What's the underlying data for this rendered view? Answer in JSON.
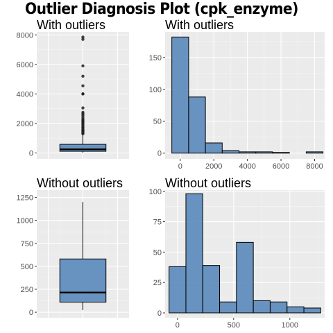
{
  "title": "Outlier Diagnosis Plot (cpk_enzyme)",
  "chart_data": [
    {
      "type": "box",
      "panel": "top-left",
      "title": "With outliers",
      "ylim": [
        -400,
        8200
      ],
      "yticks": [
        0,
        2000,
        4000,
        6000,
        8000
      ],
      "box": {
        "q1": 115,
        "median": 245,
        "q3": 585,
        "whisker_low": 23,
        "whisker_high": 1250
      },
      "outliers": [
        1300,
        1350,
        1420,
        1480,
        1520,
        1580,
        1680,
        1750,
        1830,
        1930,
        2000,
        2080,
        2150,
        2230,
        2300,
        2420,
        2550,
        2650,
        2750,
        3050,
        4000,
        4000,
        4550,
        5200,
        5900,
        7700,
        7850
      ],
      "fill": "#4a7eb5"
    },
    {
      "type": "bar",
      "panel": "top-right",
      "title": "With outliers",
      "bin_width": 1000,
      "bin_centers": [
        0,
        1000,
        2000,
        3000,
        4000,
        5000,
        6000,
        7000,
        8000
      ],
      "values": [
        182,
        88,
        16,
        4,
        2,
        2,
        1,
        0,
        2
      ],
      "xlim": [
        -900,
        8600
      ],
      "ylim": [
        -9,
        190
      ],
      "xticks": [
        0,
        2000,
        4000,
        6000,
        8000
      ],
      "yticks": [
        0,
        50,
        100,
        150
      ],
      "fill": "#4a7eb5"
    },
    {
      "type": "box",
      "panel": "bottom-left",
      "title": "Without outliers",
      "ylim": [
        -60,
        1330
      ],
      "yticks": [
        0,
        250,
        500,
        750,
        1000,
        1250
      ],
      "box": {
        "q1": 110,
        "median": 215,
        "q3": 580,
        "whisker_low": 23,
        "whisker_high": 1200
      },
      "outliers": [],
      "fill": "#4a7eb5"
    },
    {
      "type": "bar",
      "panel": "bottom-right",
      "title": "Without outliers",
      "bin_width": 150,
      "bin_centers": [
        0,
        150,
        300,
        450,
        600,
        750,
        900,
        1050,
        1200
      ],
      "values": [
        38,
        98,
        39,
        9,
        58,
        10,
        9,
        5,
        4
      ],
      "xlim": [
        -110,
        1310
      ],
      "ylim": [
        -4,
        101
      ],
      "xticks": [
        0,
        500,
        1000
      ],
      "yticks": [
        0,
        25,
        50,
        75,
        100
      ],
      "fill": "#4a7eb5"
    }
  ]
}
